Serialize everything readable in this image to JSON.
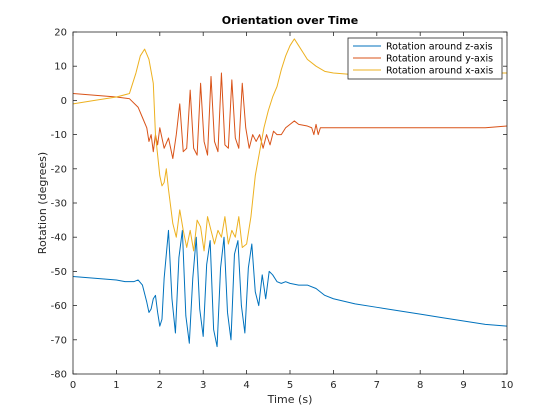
{
  "chart_data": {
    "type": "line",
    "title": "Orientation over Time",
    "xlabel": "Time (s)",
    "ylabel": "Rotation (degrees)",
    "xlim": [
      0,
      10
    ],
    "ylim": [
      -80,
      20
    ],
    "x_ticks": [
      0,
      1,
      2,
      3,
      4,
      5,
      6,
      7,
      8,
      9,
      10
    ],
    "y_ticks": [
      -80,
      -70,
      -60,
      -50,
      -40,
      -30,
      -20,
      -10,
      0,
      10,
      20
    ],
    "grid": false,
    "legend_location": "top-right",
    "series": [
      {
        "name": "Rotation around z-axis",
        "color": "#0072BD",
        "x": [
          0,
          0.5,
          1.0,
          1.2,
          1.4,
          1.5,
          1.6,
          1.7,
          1.75,
          1.8,
          1.85,
          1.9,
          1.95,
          2.0,
          2.05,
          2.1,
          2.2,
          2.28,
          2.36,
          2.44,
          2.52,
          2.6,
          2.68,
          2.76,
          2.84,
          2.92,
          3.0,
          3.08,
          3.16,
          3.24,
          3.32,
          3.4,
          3.48,
          3.56,
          3.64,
          3.72,
          3.8,
          3.88,
          3.96,
          4.04,
          4.12,
          4.2,
          4.28,
          4.36,
          4.44,
          4.52,
          4.6,
          4.7,
          4.8,
          4.9,
          5.0,
          5.2,
          5.4,
          5.6,
          5.8,
          6.0,
          6.5,
          7.0,
          7.5,
          8.0,
          8.5,
          9.0,
          9.5,
          10.0
        ],
        "y": [
          -51.5,
          -52,
          -52.5,
          -53,
          -53,
          -52.5,
          -54,
          -59,
          -62,
          -61,
          -58,
          -57,
          -62,
          -66,
          -64,
          -52,
          -38,
          -58,
          -68,
          -46,
          -38,
          -63,
          -71,
          -52,
          -40,
          -61,
          -69,
          -48,
          -41,
          -67,
          -72,
          -49,
          -40,
          -62,
          -70,
          -45,
          -41,
          -60,
          -68,
          -49,
          -42,
          -56,
          -60,
          -51,
          -58,
          -50,
          -51,
          -53,
          -53.5,
          -53,
          -53.5,
          -54,
          -54,
          -55,
          -57,
          -58,
          -59.5,
          -60.5,
          -61.5,
          -62.5,
          -63.5,
          -64.5,
          -65.5,
          -66
        ]
      },
      {
        "name": "Rotation around y-axis",
        "color": "#D95319",
        "x": [
          0,
          0.5,
          1.0,
          1.3,
          1.5,
          1.6,
          1.7,
          1.75,
          1.8,
          1.85,
          1.9,
          1.95,
          2.0,
          2.1,
          2.2,
          2.3,
          2.38,
          2.46,
          2.54,
          2.62,
          2.7,
          2.78,
          2.86,
          2.94,
          3.02,
          3.1,
          3.18,
          3.26,
          3.34,
          3.42,
          3.5,
          3.58,
          3.66,
          3.74,
          3.82,
          3.9,
          3.98,
          4.06,
          4.14,
          4.22,
          4.3,
          4.38,
          4.46,
          4.54,
          4.62,
          4.7,
          4.8,
          4.9,
          5.0,
          5.1,
          5.2,
          5.4,
          5.5,
          5.55,
          5.6,
          5.65,
          5.7,
          6.0,
          6.5,
          7.0,
          7.5,
          8.0,
          8.5,
          9.0,
          9.5,
          10.0
        ],
        "y": [
          2,
          1.5,
          1,
          0.5,
          -2,
          -5,
          -8,
          -12,
          -10,
          -15,
          -10,
          -13,
          -8,
          -14,
          -11,
          -17,
          -10,
          -1,
          -15,
          -14,
          3,
          -14,
          -16,
          5,
          -12,
          -16,
          7,
          -12,
          -15,
          8,
          -13,
          -14,
          6,
          -11,
          -14,
          5,
          -8,
          -14,
          -10,
          -12,
          -10,
          -14,
          -10,
          -13,
          -9,
          -10,
          -10,
          -8,
          -7,
          -6,
          -7,
          -7.5,
          -8,
          -10,
          -7,
          -10,
          -8,
          -8,
          -8,
          -8,
          -8,
          -8,
          -8,
          -8,
          -8,
          -7.5
        ]
      },
      {
        "name": "Rotation around x-axis",
        "color": "#EDB120",
        "x": [
          0,
          0.5,
          1.0,
          1.3,
          1.45,
          1.55,
          1.65,
          1.75,
          1.85,
          1.9,
          2.0,
          2.05,
          2.1,
          2.15,
          2.2,
          2.3,
          2.38,
          2.46,
          2.54,
          2.62,
          2.7,
          2.78,
          2.86,
          2.94,
          3.02,
          3.1,
          3.18,
          3.26,
          3.34,
          3.42,
          3.5,
          3.58,
          3.66,
          3.74,
          3.82,
          3.9,
          4.0,
          4.1,
          4.2,
          4.3,
          4.4,
          4.5,
          4.6,
          4.7,
          4.8,
          4.9,
          5.0,
          5.1,
          5.2,
          5.3,
          5.4,
          5.6,
          5.8,
          6.0,
          6.5,
          7.0,
          7.5,
          8.0,
          8.5,
          9.0,
          9.5,
          10.0
        ],
        "y": [
          -1,
          0,
          1,
          2,
          8,
          13,
          15,
          12,
          5,
          -10,
          -22,
          -25,
          -24,
          -20,
          -26,
          -36,
          -40,
          -32,
          -38,
          -43,
          -38,
          -44,
          -35,
          -37,
          -44,
          -34,
          -38,
          -42,
          -38,
          -40,
          -34,
          -42,
          -38,
          -40,
          -34,
          -43,
          -42,
          -34,
          -22,
          -15,
          -8,
          -3,
          1,
          4,
          9,
          13,
          16,
          18,
          16,
          14,
          12,
          10,
          8.5,
          8,
          7.5,
          7.5,
          8,
          8,
          8,
          8,
          8,
          8
        ]
      }
    ]
  }
}
